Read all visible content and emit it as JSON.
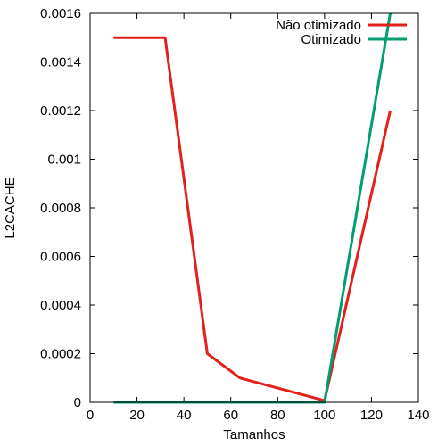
{
  "chart_data": {
    "type": "line",
    "xlabel": "Tamanhos",
    "ylabel": "L2CACHE",
    "xlim": [
      0,
      140
    ],
    "ylim": [
      0,
      0.0016
    ],
    "x_ticks": [
      "0",
      "20",
      "40",
      "60",
      "80",
      "100",
      "120",
      "140"
    ],
    "y_ticks": [
      "0",
      "0.0002",
      "0.0004",
      "0.0006",
      "0.0008",
      "0.001",
      "0.0012",
      "0.0014",
      "0.0016"
    ],
    "grid": false,
    "legend_position": "top-right",
    "series": [
      {
        "name": "Não otimizado",
        "color": "#e3201b",
        "x": [
          10,
          32,
          50,
          64,
          100,
          128
        ],
        "y": [
          0.0015,
          0.0015,
          0.0002,
          0.0001,
          7e-06,
          0.0012
        ]
      },
      {
        "name": "Otimizado",
        "color": "#009e73",
        "x": [
          10,
          32,
          50,
          64,
          100,
          128
        ],
        "y": [
          0,
          0,
          0,
          0,
          0,
          0.0016
        ]
      }
    ]
  }
}
